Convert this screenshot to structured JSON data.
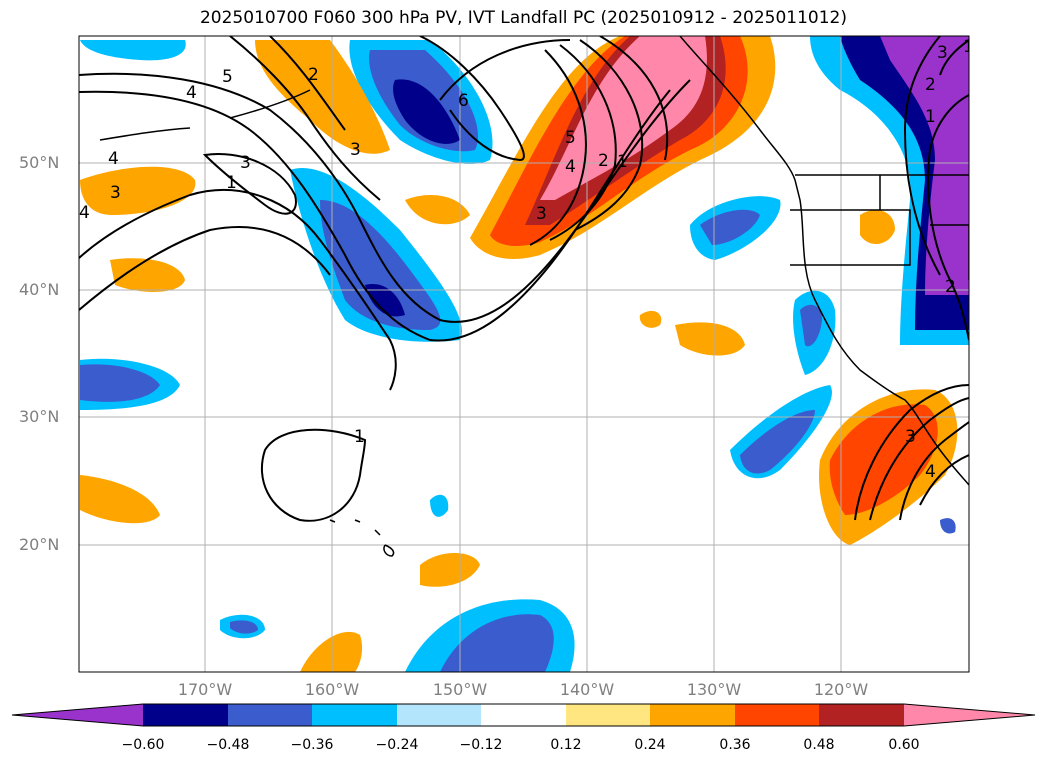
{
  "title": "2025010700 F060 300 hPa PV, IVT Landfall PC (2025010912 - 2025011012)",
  "latitude_labels": [
    "50°N",
    "40°N",
    "30°N",
    "20°N"
  ],
  "longitude_labels": [
    "170°W",
    "160°W",
    "150°W",
    "140°W",
    "130°W",
    "120°W"
  ],
  "colorbar": {
    "ticks": [
      "−0.60",
      "−0.48",
      "−0.36",
      "−0.24",
      "−0.12",
      "0.12",
      "0.24",
      "0.36",
      "0.48",
      "0.60"
    ],
    "colors": [
      "#9933cc",
      "#00008b",
      "#3a5ccc",
      "#00bfff",
      "#b3e5fc",
      "#ffffff",
      "#ffe680",
      "#ffa500",
      "#ff4500",
      "#b22222",
      "#ff88aa"
    ]
  },
  "contour_labels": [
    "5",
    "4",
    "3",
    "2",
    "1",
    "6",
    "5",
    "4",
    "3",
    "2",
    "1",
    "3",
    "4",
    "1",
    "3",
    "2",
    "1",
    "1",
    "2",
    "3",
    "4",
    "3",
    "4"
  ],
  "colors": {
    "land_outline": "#000000",
    "grid": "#b0b0b0",
    "label_gray": "#808080"
  }
}
